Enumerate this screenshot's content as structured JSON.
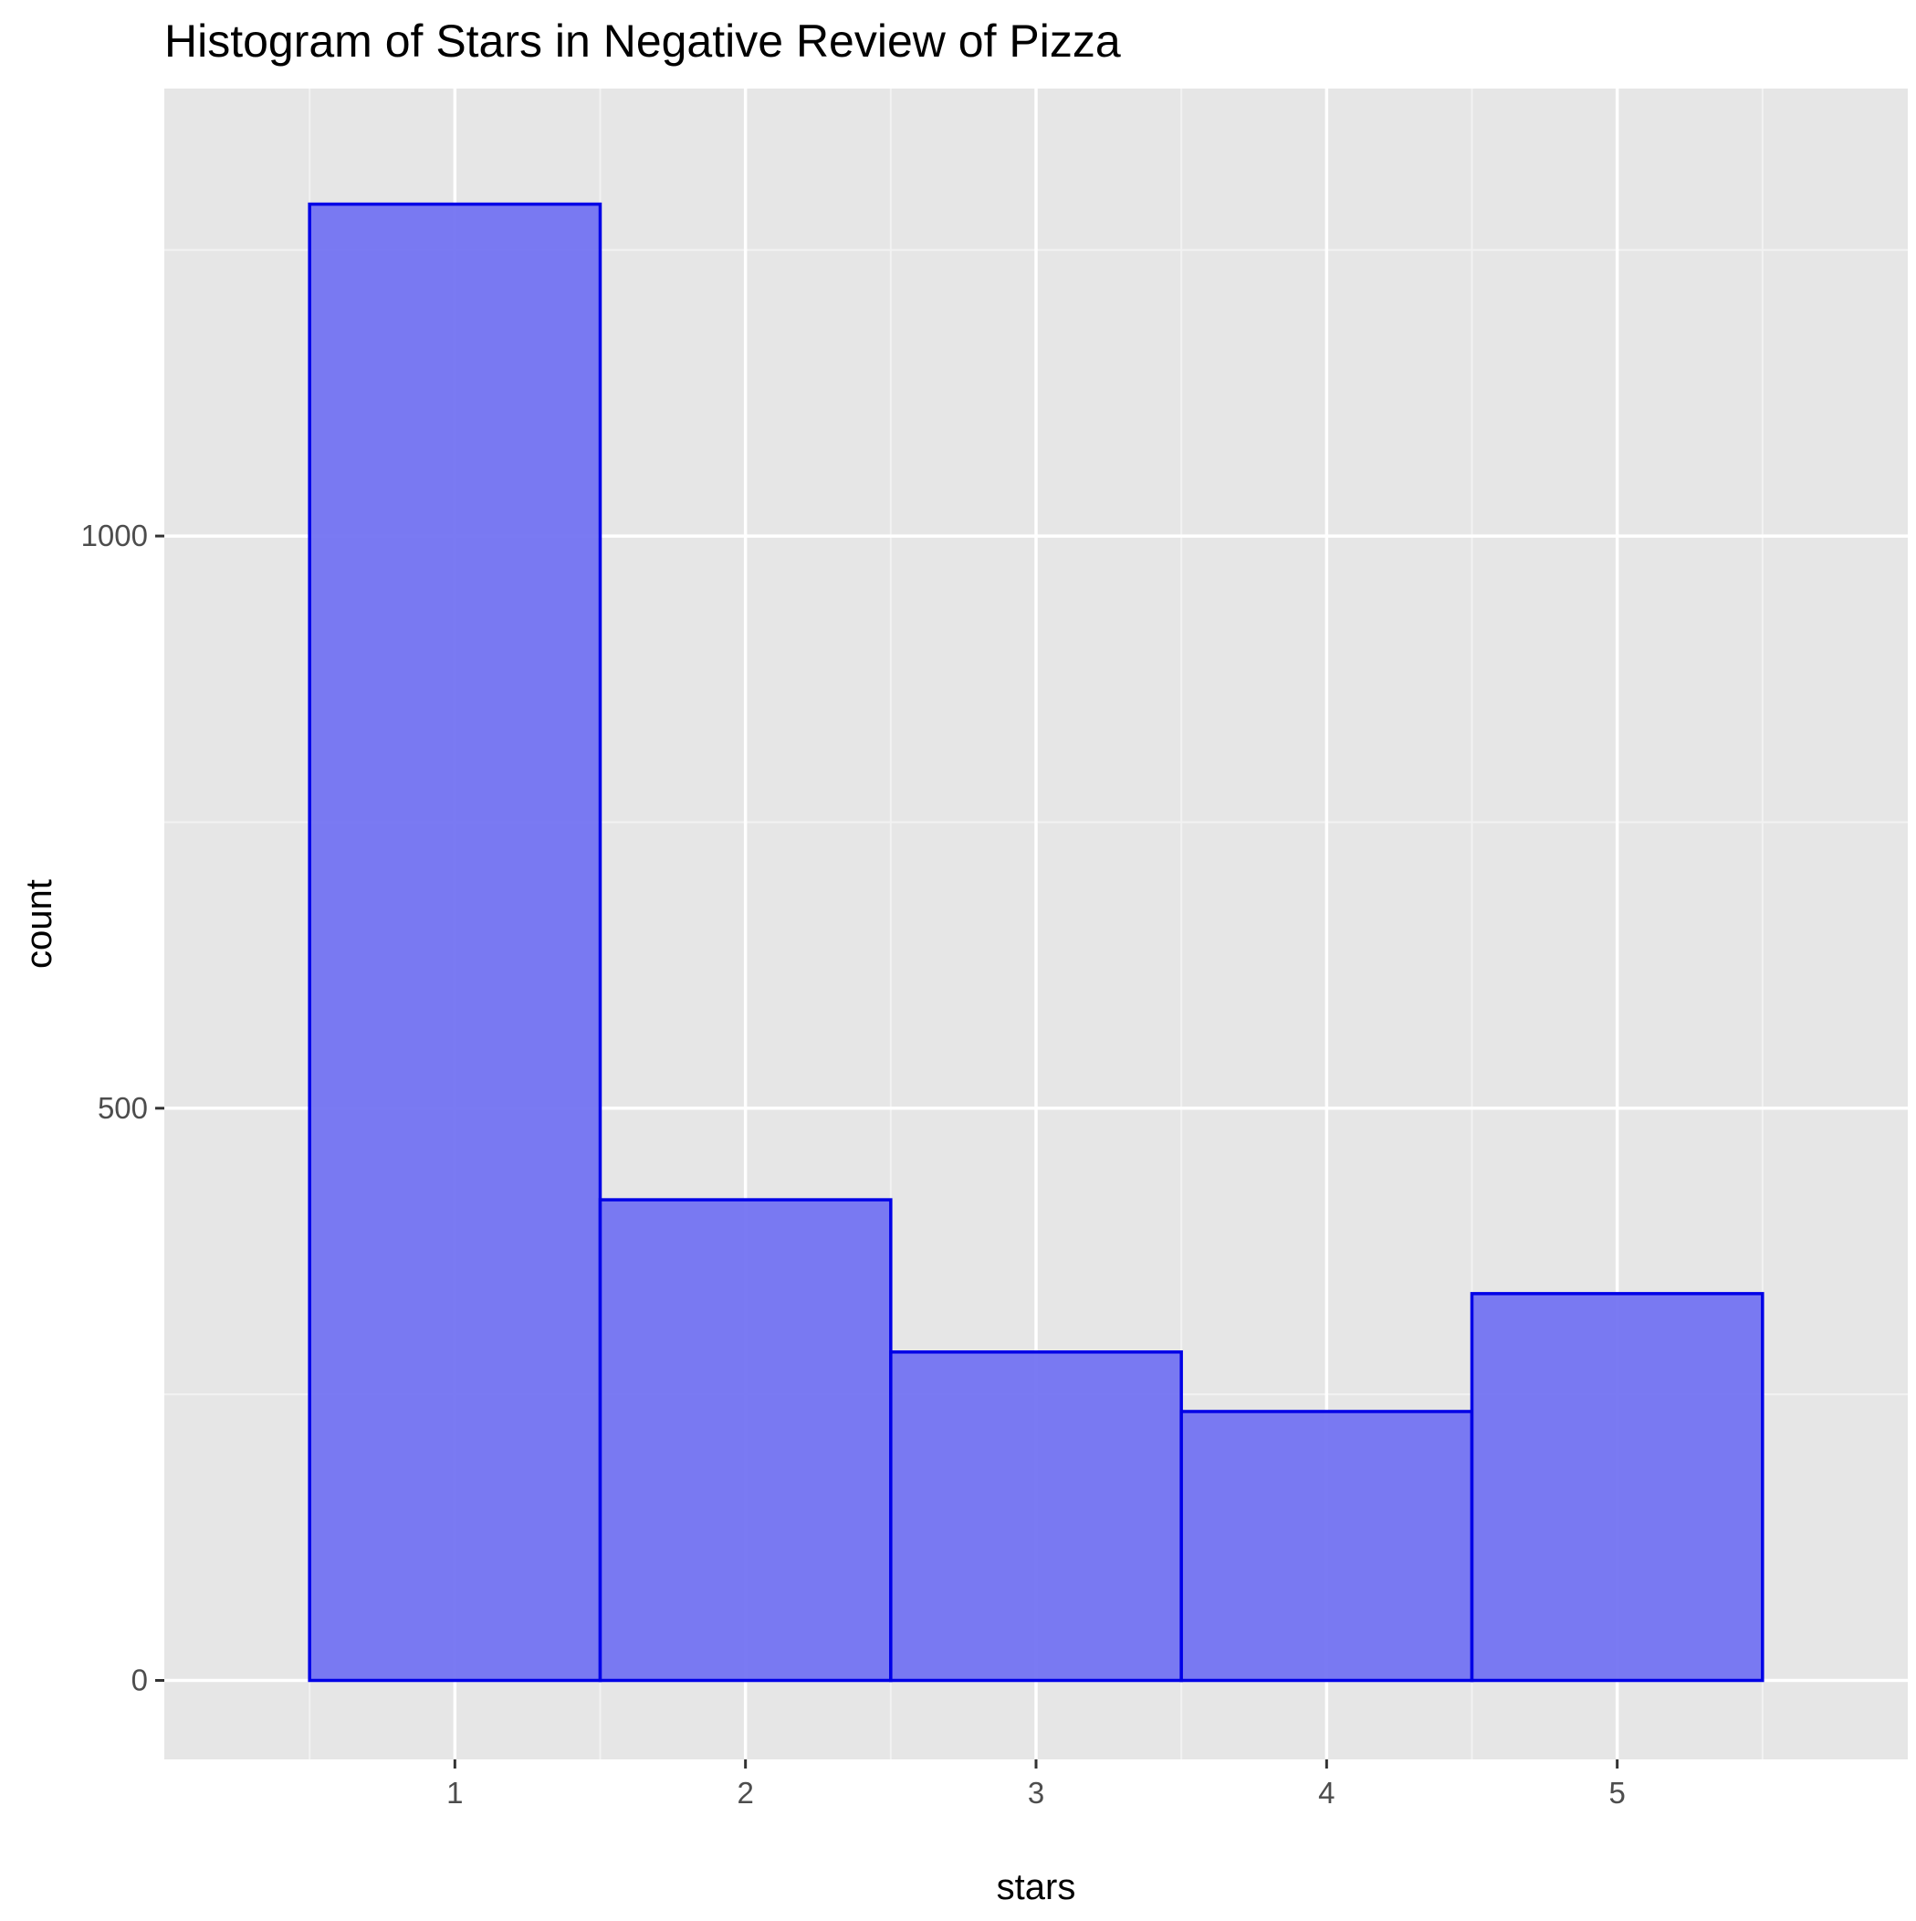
{
  "chart_data": {
    "type": "bar",
    "title": "Histogram of Stars in Negative Review of Pizza",
    "xlabel": "stars",
    "ylabel": "count",
    "categories": [
      "1",
      "2",
      "3",
      "4",
      "5"
    ],
    "x": [
      1,
      2,
      3,
      4,
      5
    ],
    "values": [
      1290,
      420,
      287,
      235,
      338
    ],
    "bin_width": 1,
    "xlim": [
      0,
      6
    ],
    "ylim": [
      -69,
      1391
    ],
    "x_ticks": [
      1,
      2,
      3,
      4,
      5
    ],
    "x_tick_labels": [
      "1",
      "2",
      "3",
      "4",
      "5"
    ],
    "y_ticks": [
      0,
      500,
      1000
    ],
    "y_tick_labels": [
      "0",
      "500",
      "1000"
    ],
    "y_minor_ticks": [
      250,
      750,
      1250
    ],
    "grid": true,
    "legend": "none",
    "colors": {
      "bar_fill": "#7373f2",
      "bar_outline": "#0000e6",
      "panel_background": "#e6e6e6",
      "grid_major": "#ffffff",
      "grid_minor": "#f2f2f2"
    }
  }
}
